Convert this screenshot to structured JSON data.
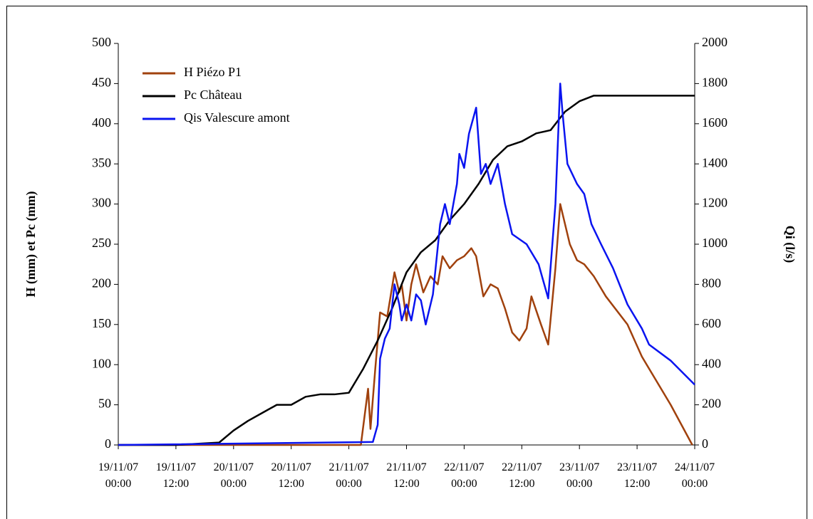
{
  "chart_data": {
    "type": "line",
    "xlim": [
      "19/11/07 00:00",
      "24/11/07 00:00"
    ],
    "xticks": [
      "19/11/07\n00:00",
      "19/11/07\n12:00",
      "20/11/07\n00:00",
      "20/11/07\n12:00",
      "21/11/07\n00:00",
      "21/11/07\n12:00",
      "22/11/07\n00:00",
      "22/11/07\n12:00",
      "23/11/07\n00:00",
      "23/11/07\n12:00",
      "24/11/07\n00:00"
    ],
    "ylabel": "H (mm) et Pc (mm)",
    "ylim": [
      0,
      500
    ],
    "yticks": [
      0,
      50,
      100,
      150,
      200,
      250,
      300,
      350,
      400,
      450,
      500
    ],
    "y2label": "Qi (l/s)",
    "y2lim": [
      0,
      2000
    ],
    "y2ticks": [
      0,
      200,
      400,
      600,
      800,
      1000,
      1200,
      1400,
      1600,
      1800,
      2000
    ],
    "legend": "upper left",
    "series": [
      {
        "name": "H Piézo P1",
        "color": "#a0410d",
        "axis": "y",
        "x": [
          "19/11/07 00:00",
          "21/11/07 02:30",
          "21/11/07 04:00",
          "21/11/07 04:30",
          "21/11/07 05:30",
          "21/11/07 06:30",
          "21/11/07 08:00",
          "21/11/07 09:30",
          "21/11/07 10:30",
          "21/11/07 11:00",
          "21/11/07 12:00",
          "21/11/07 13:00",
          "21/11/07 14:00",
          "21/11/07 15:30",
          "21/11/07 17:00",
          "21/11/07 18:30",
          "21/11/07 19:30",
          "21/11/07 21:00",
          "21/11/07 22:30",
          "22/11/07 00:00",
          "22/11/07 01:30",
          "22/11/07 02:30",
          "22/11/07 04:00",
          "22/11/07 05:30",
          "22/11/07 07:00",
          "22/11/07 08:30",
          "22/11/07 10:00",
          "22/11/07 11:30",
          "22/11/07 13:00",
          "22/11/07 14:00",
          "22/11/07 16:00",
          "22/11/07 17:30",
          "22/11/07 19:00",
          "22/11/07 20:00",
          "22/11/07 22:00",
          "22/11/07 23:30",
          "23/11/07 01:00",
          "23/11/07 03:00",
          "23/11/07 05:30",
          "23/11/07 10:00",
          "23/11/07 13:00",
          "23/11/07 19:00",
          "23/11/07 23:30"
        ],
        "values": [
          0,
          0,
          70,
          20,
          95,
          165,
          160,
          215,
          190,
          200,
          155,
          200,
          225,
          190,
          210,
          200,
          235,
          220,
          230,
          235,
          245,
          235,
          185,
          200,
          195,
          170,
          140,
          130,
          145,
          185,
          150,
          125,
          220,
          300,
          250,
          230,
          225,
          210,
          185,
          150,
          110,
          50,
          0
        ]
      },
      {
        "name": "Pc Château",
        "color": "#000000",
        "axis": "y",
        "x": [
          "19/11/07 00:00",
          "19/11/07 12:00",
          "19/11/07 15:00",
          "19/11/07 18:00",
          "19/11/07 21:00",
          "20/11/07 00:00",
          "20/11/07 03:00",
          "20/11/07 06:00",
          "20/11/07 09:00",
          "20/11/07 12:00",
          "20/11/07 15:00",
          "20/11/07 18:00",
          "20/11/07 21:00",
          "21/11/07 00:00",
          "21/11/07 03:00",
          "21/11/07 06:00",
          "21/11/07 09:00",
          "21/11/07 12:00",
          "21/11/07 15:00",
          "21/11/07 18:00",
          "21/11/07 21:00",
          "22/11/07 00:00",
          "22/11/07 03:00",
          "22/11/07 06:00",
          "22/11/07 09:00",
          "22/11/07 12:00",
          "22/11/07 15:00",
          "22/11/07 18:00",
          "22/11/07 21:00",
          "23/11/07 00:00",
          "23/11/07 03:00",
          "24/11/07 00:00"
        ],
        "values": [
          0,
          0,
          1,
          2,
          3,
          18,
          30,
          40,
          50,
          50,
          60,
          63,
          63,
          65,
          95,
          130,
          170,
          215,
          240,
          255,
          280,
          300,
          325,
          355,
          372,
          378,
          388,
          392,
          415,
          428,
          435,
          435
        ]
      },
      {
        "name": "Qis Valescure amont",
        "color": "#0a14f0",
        "axis": "y2",
        "x": [
          "19/11/07 00:00",
          "21/11/07 05:00",
          "21/11/07 06:00",
          "21/11/07 06:30",
          "21/11/07 07:30",
          "21/11/07 08:30",
          "21/11/07 09:30",
          "21/11/07 10:30",
          "21/11/07 11:00",
          "21/11/07 12:00",
          "21/11/07 13:00",
          "21/11/07 14:00",
          "21/11/07 15:00",
          "21/11/07 16:00",
          "21/11/07 17:30",
          "21/11/07 19:00",
          "21/11/07 20:00",
          "21/11/07 21:00",
          "21/11/07 22:30",
          "21/11/07 23:00",
          "22/11/07 00:00",
          "22/11/07 01:00",
          "22/11/07 02:30",
          "22/11/07 03:30",
          "22/11/07 04:30",
          "22/11/07 05:30",
          "22/11/07 07:00",
          "22/11/07 08:30",
          "22/11/07 10:00",
          "22/11/07 13:00",
          "22/11/07 15:30",
          "22/11/07 17:30",
          "22/11/07 19:00",
          "22/11/07 20:00",
          "22/11/07 20:30",
          "22/11/07 21:30",
          "22/11/07 23:30",
          "23/11/07 01:00",
          "23/11/07 02:30",
          "23/11/07 04:30",
          "23/11/07 07:00",
          "23/11/07 10:00",
          "23/11/07 13:00",
          "23/11/07 14:30",
          "23/11/07 19:00",
          "24/11/07 00:00"
        ],
        "values": [
          0,
          15,
          100,
          430,
          530,
          580,
          800,
          700,
          620,
          700,
          620,
          750,
          720,
          600,
          750,
          1100,
          1200,
          1100,
          1300,
          1450,
          1380,
          1550,
          1680,
          1350,
          1400,
          1300,
          1400,
          1200,
          1050,
          1000,
          900,
          730,
          1200,
          1800,
          1650,
          1400,
          1300,
          1250,
          1100,
          1000,
          880,
          700,
          580,
          500,
          420,
          300
        ]
      }
    ]
  }
}
